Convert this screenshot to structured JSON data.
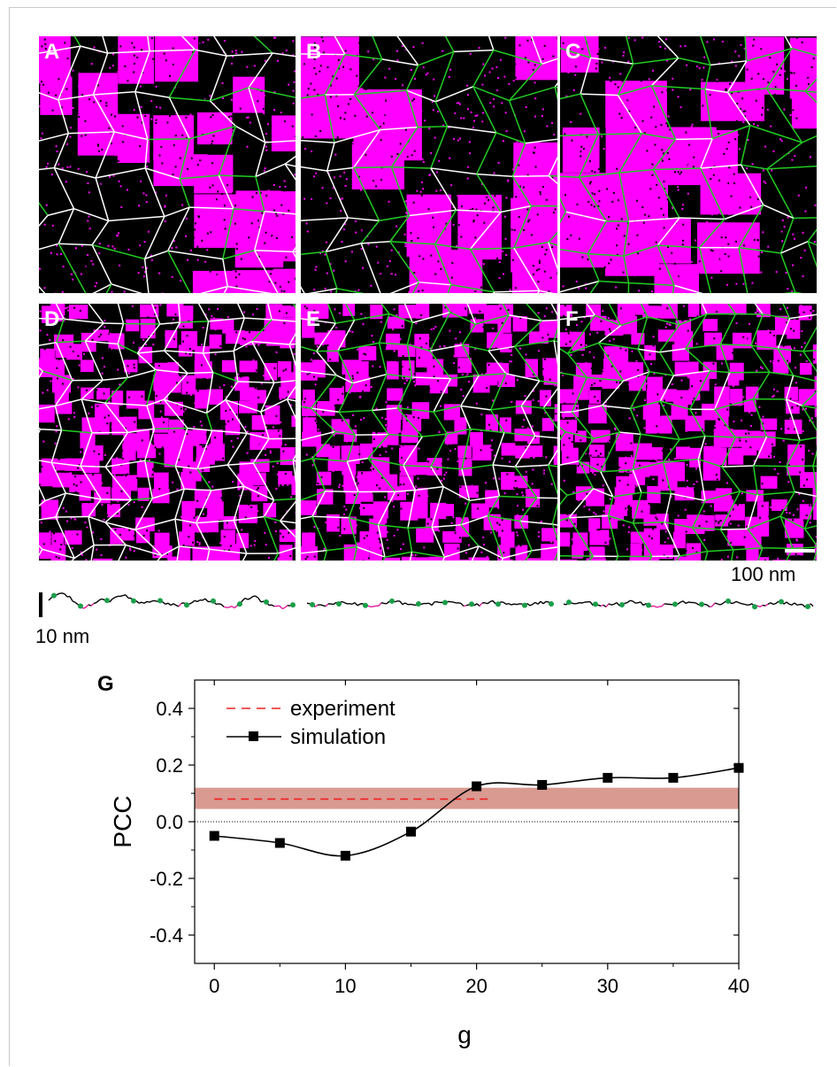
{
  "panels": [
    {
      "id": "A",
      "letter": "A",
      "magenta_fraction": 0.5,
      "blob": 44,
      "seed": 11,
      "edge_mix": 0.25
    },
    {
      "id": "B",
      "letter": "B",
      "magenta_fraction": 0.5,
      "blob": 60,
      "seed": 23,
      "edge_mix": 0.6
    },
    {
      "id": "C",
      "letter": "C",
      "magenta_fraction": 0.5,
      "blob": 52,
      "seed": 37,
      "edge_mix": 0.7
    },
    {
      "id": "D",
      "letter": "D",
      "magenta_fraction": 0.45,
      "blob": 16,
      "seed": 41,
      "edge_mix": 0.1
    },
    {
      "id": "E",
      "letter": "E",
      "magenta_fraction": 0.45,
      "blob": 16,
      "seed": 53,
      "edge_mix": 0.55
    },
    {
      "id": "F",
      "letter": "F",
      "magenta_fraction": 0.45,
      "blob": 16,
      "seed": 67,
      "edge_mix": 0.75
    }
  ],
  "scale_bar_label": "100 nm",
  "vertical_scale_label": "10 nm",
  "colors": {
    "magenta": "#ff00ff",
    "background": "#000000",
    "edge_white": "#ffffff",
    "edge_green": "#22cc22",
    "profile_black": "#000000",
    "profile_magenta": "#e0189a",
    "dot_green": "#1a9e4a",
    "band": "#d99a92",
    "dashed_red": "#ee2222"
  },
  "chart_data": {
    "type": "line",
    "panel_label": "G",
    "xlabel": "g",
    "ylabel": "PCC",
    "xlim": [
      -1.5,
      40
    ],
    "ylim": [
      -0.5,
      0.5
    ],
    "xticks": [
      0,
      10,
      20,
      30,
      40
    ],
    "xtick_labels": [
      "0",
      "10",
      "20",
      "30",
      "40"
    ],
    "yticks": [
      0.4,
      0.2,
      0.0,
      -0.2,
      -0.4
    ],
    "ytick_labels": [
      "0.4",
      "0.2",
      "0.0",
      "-0.2",
      "-0.4"
    ],
    "legend_position": "top-left",
    "series": [
      {
        "name": "simulation",
        "style": "black line with square markers",
        "x": [
          0,
          5,
          10,
          15,
          20,
          25,
          30,
          35,
          40
        ],
        "y": [
          -0.05,
          -0.075,
          -0.12,
          -0.035,
          0.125,
          0.13,
          0.155,
          0.155,
          0.19
        ]
      },
      {
        "name": "experiment",
        "style": "red dashed line",
        "x": [
          0,
          21
        ],
        "y": [
          0.08,
          0.08
        ]
      }
    ],
    "experiment_band": [
      0.045,
      0.12
    ],
    "zero_line": 0.0
  }
}
